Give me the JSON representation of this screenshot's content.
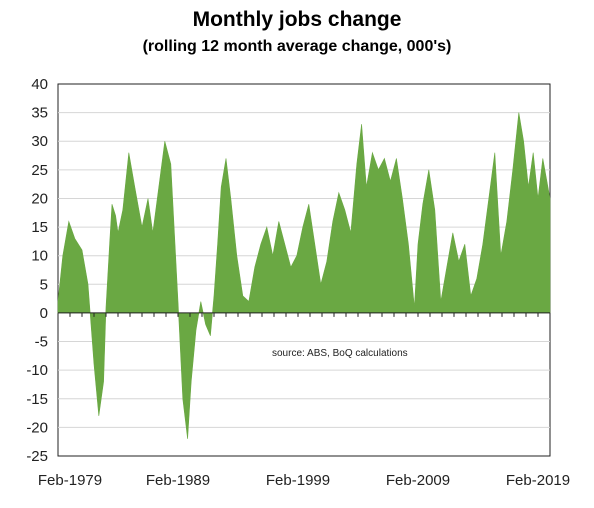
{
  "chart_data": {
    "type": "area",
    "title": "Monthly jobs change",
    "subtitle": "(rolling 12 month average change, 000's)",
    "xlabel": "",
    "ylabel": "",
    "ylim": [
      -25,
      40
    ],
    "yticks": [
      40,
      35,
      30,
      25,
      20,
      15,
      10,
      5,
      0,
      -5,
      -10,
      -15,
      -20,
      -25
    ],
    "xticks": [
      "Feb-1979",
      "Feb-1989",
      "Feb-1999",
      "Feb-2009",
      "Feb-2019"
    ],
    "xlim": [
      1979.1,
      2020.1
    ],
    "grid": true,
    "legend": "none",
    "annotation": "source:  ABS, BoQ calculations",
    "color": "#6aa843",
    "series": [
      {
        "x": [
          1979.1,
          1979.5,
          1980.0,
          1980.5,
          1981.1,
          1981.6,
          1982.1,
          1982.5,
          1982.9,
          1983.1,
          1983.4,
          1983.6,
          1983.9,
          1984.1,
          1984.5,
          1985.0,
          1985.5,
          1986.1,
          1986.6,
          1987.0,
          1987.5,
          1988.0,
          1988.5,
          1989.1,
          1989.5,
          1989.9,
          1990.2,
          1990.6,
          1991.0,
          1991.4,
          1991.8,
          1992.1,
          1992.4,
          1992.7,
          1993.1,
          1993.5,
          1994.0,
          1994.5,
          1995.0,
          1995.5,
          1996.0,
          1996.5,
          1997.0,
          1997.5,
          1998.0,
          1998.5,
          1999.0,
          1999.5,
          2000.0,
          2000.5,
          2001.0,
          2001.5,
          2002.0,
          2002.5,
          2003.0,
          2003.5,
          2004.0,
          2004.4,
          2004.8,
          2005.3,
          2005.8,
          2006.3,
          2006.8,
          2007.3,
          2007.8,
          2008.3,
          2008.8,
          2009.1,
          2009.5,
          2010.0,
          2010.5,
          2011.0,
          2011.5,
          2012.0,
          2012.5,
          2013.0,
          2013.5,
          2014.0,
          2014.5,
          2015.0,
          2015.5,
          2016.0,
          2016.5,
          2017.0,
          2017.5,
          2017.9,
          2018.3,
          2018.7,
          2019.1,
          2019.5,
          2020.1
        ],
        "y": [
          2,
          10,
          16,
          13,
          11,
          5,
          -9,
          -18,
          -12,
          1,
          12,
          19,
          17,
          14,
          18,
          28,
          22,
          15,
          20,
          14,
          22,
          30,
          26,
          2,
          -15,
          -22,
          -12,
          -3,
          2,
          -2,
          -4,
          3,
          12,
          22,
          27,
          20,
          10,
          3,
          2,
          8,
          12,
          15,
          10,
          16,
          12,
          8,
          10,
          15,
          19,
          12,
          5,
          9,
          16,
          21,
          18,
          14,
          26,
          33,
          22,
          28,
          25,
          27,
          23,
          27,
          20,
          12,
          1,
          12,
          19,
          25,
          18,
          2,
          8,
          14,
          9,
          12,
          3,
          6,
          12,
          20,
          28,
          10,
          16,
          25,
          35,
          30,
          22,
          28,
          20,
          27,
          20
        ]
      }
    ]
  }
}
